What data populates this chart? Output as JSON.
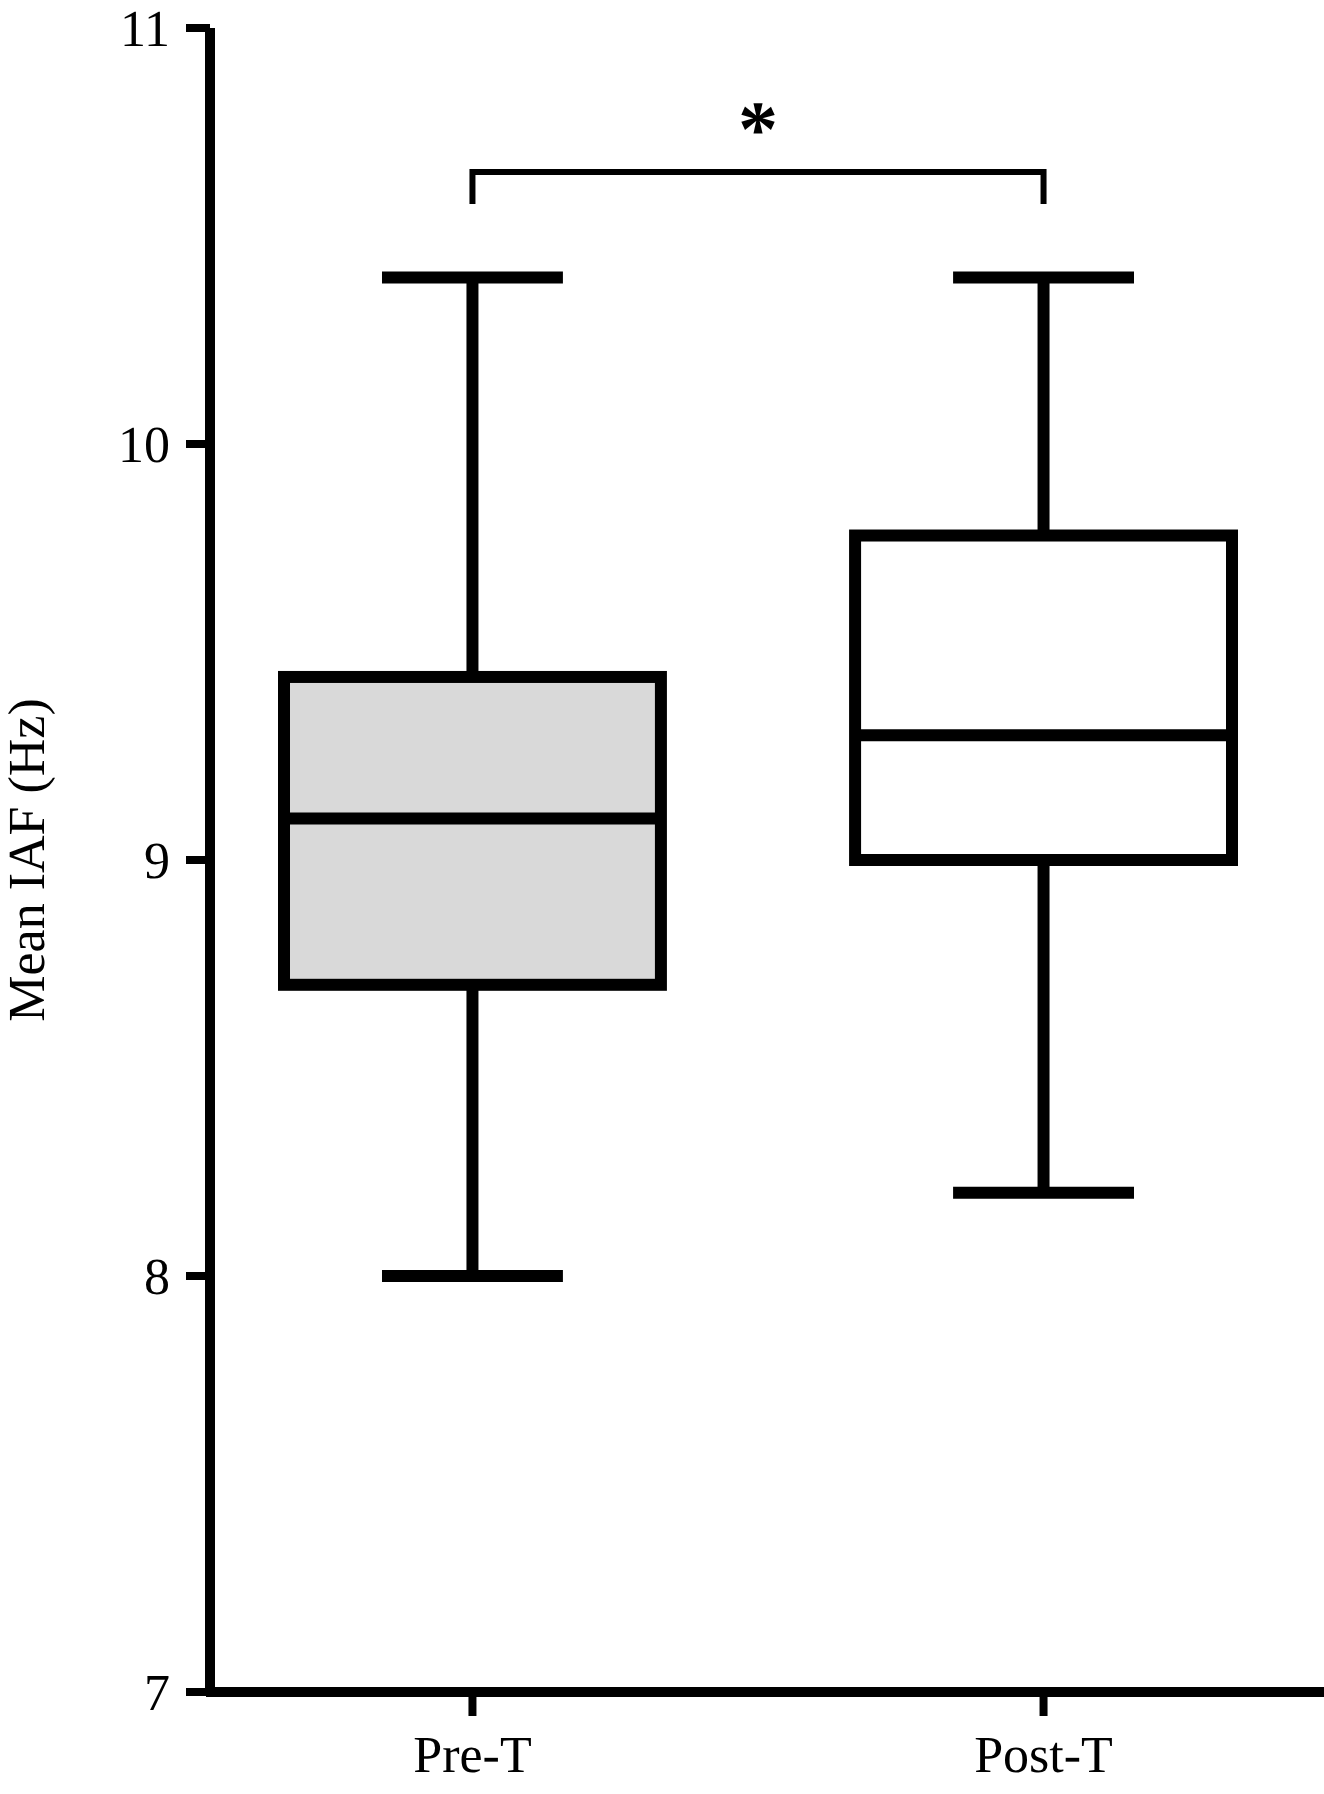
{
  "chart_data": {
    "type": "box",
    "ylabel": "Mean IAF (Hz)",
    "categories": [
      "Pre-T",
      "Post-T"
    ],
    "boxes": [
      {
        "low": 8.0,
        "q1": 8.7,
        "median": 9.1,
        "q3": 9.44,
        "high": 10.4
      },
      {
        "low": 8.2,
        "q1": 9.0,
        "median": 9.3,
        "q3": 9.78,
        "high": 10.4
      }
    ],
    "colors": [
      "#d9d9d9",
      "#ffffff"
    ],
    "ylim": [
      7,
      11
    ],
    "yticks": [
      7,
      8,
      9,
      10,
      11
    ],
    "grid": false,
    "annotations": [
      "*"
    ]
  }
}
